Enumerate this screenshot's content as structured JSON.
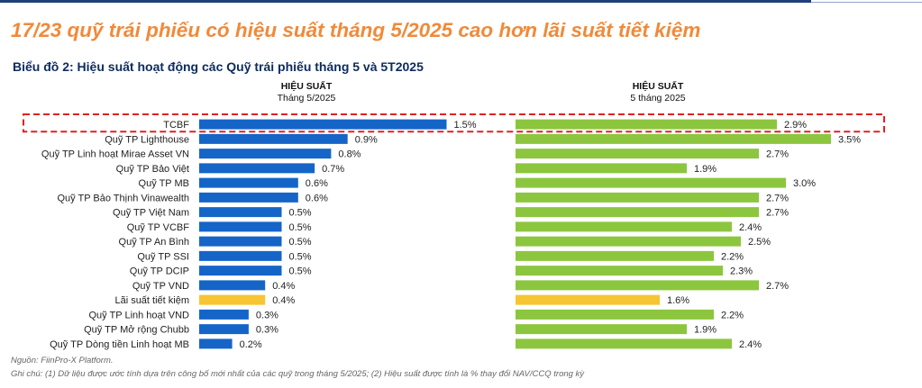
{
  "headline": "17/23 quỹ trái phiếu có hiệu suất tháng 5/2025 cao hơn lãi suất tiết kiệm",
  "chart_subtitle": "Biểu đồ 2: Hiệu suất hoạt động các Quỹ trái phiếu tháng 5 và 5T2025",
  "column_headers": {
    "left": {
      "line1": "HIỆU SUẤT",
      "line2": "Tháng 5/2025"
    },
    "right": {
      "line1": "HIỆU SUẤT",
      "line2": "5 tháng 2025"
    }
  },
  "chart_data": {
    "type": "bar",
    "orientation": "horizontal",
    "categories": [
      "TCBF",
      "Quỹ TP Lighthouse",
      "Quỹ TP Linh hoạt Mirae Asset VN",
      "Quỹ TP Bảo Việt",
      "Quỹ TP MB",
      "Quỹ TP Bảo Thịnh Vinawealth",
      "Quỹ TP Việt Nam",
      "Quỹ TP VCBF",
      "Quỹ TP An Bình",
      "Quỹ TP SSI",
      "Quỹ TP DCIP",
      "Quỹ TP VND",
      "Lãi suất tiết kiệm",
      "Quỹ TP Linh hoạt VND",
      "Quỹ TP Mở rộng Chubb",
      "Quỹ TP Dòng tiền Linh hoạt MB"
    ],
    "series": [
      {
        "name": "HIỆU SUẤT Tháng 5/2025",
        "values": [
          1.5,
          0.9,
          0.8,
          0.7,
          0.6,
          0.6,
          0.5,
          0.5,
          0.5,
          0.5,
          0.5,
          0.4,
          0.4,
          0.3,
          0.3,
          0.2
        ],
        "labels": [
          "1.5%",
          "0.9%",
          "0.8%",
          "0.7%",
          "0.6%",
          "0.6%",
          "0.5%",
          "0.5%",
          "0.5%",
          "0.5%",
          "0.5%",
          "0.4%",
          "0.4%",
          "0.3%",
          "0.3%",
          "0.2%"
        ]
      },
      {
        "name": "HIỆU SUẤT 5 tháng 2025",
        "values": [
          2.9,
          3.5,
          2.7,
          1.9,
          3.0,
          2.7,
          2.7,
          2.4,
          2.5,
          2.2,
          2.3,
          2.7,
          1.6,
          2.2,
          1.9,
          2.4
        ],
        "labels": [
          "2.9%",
          "3.5%",
          "2.7%",
          "1.9%",
          "3.0%",
          "2.7%",
          "2.7%",
          "2.4%",
          "2.5%",
          "2.2%",
          "2.3%",
          "2.7%",
          "1.6%",
          "2.2%",
          "1.9%",
          "2.4%"
        ]
      }
    ],
    "highlight_category": "TCBF",
    "benchmark_category": "Lãi suất tiết kiệm",
    "colors": {
      "series1": "#1565c8",
      "series2": "#8cc63f",
      "benchmark": "#f7c531",
      "highlight_box": "#e02020"
    },
    "value_suffix": "%"
  },
  "footnotes": {
    "source": "Nguồn: FiinPro-X Platform.",
    "note": "Ghi chú: (1) Dữ liệu được ước tính dựa trên công bố mới nhất của các quỹ trong tháng 5/2025; (2) Hiệu suất được tính là % thay đổi NAV/CCQ trong kỳ"
  }
}
